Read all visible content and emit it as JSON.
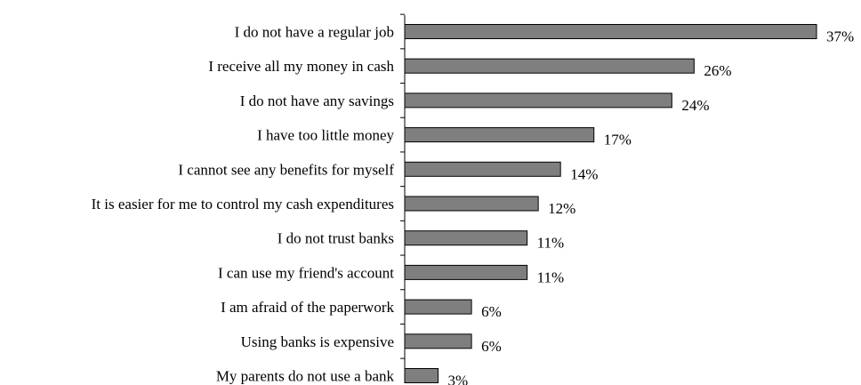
{
  "chart_data": {
    "type": "bar",
    "orientation": "horizontal",
    "categories": [
      "I do not have a regular job",
      "I receive all my money in cash",
      "I do not have any savings",
      "I have too little money",
      "I cannot see any benefits for myself",
      "It is easier for me to control my cash expenditures",
      "I do not trust banks",
      "I can use my friend's account",
      "I am afraid of the paperwork",
      "Using banks is expensive",
      "My parents do not use a bank"
    ],
    "values": [
      37,
      26,
      24,
      17,
      14,
      12,
      11,
      11,
      6,
      6,
      3
    ],
    "value_labels": [
      "37%",
      "26%",
      "24%",
      "17%",
      "14%",
      "12%",
      "11%",
      "11%",
      "6%",
      "6%",
      "3%"
    ],
    "unit": "%",
    "xlim": [
      0,
      37
    ],
    "grid": false,
    "legend": "none",
    "colors": {
      "bar_fill": "#7f7f7f",
      "bar_stroke": "#000000"
    }
  }
}
